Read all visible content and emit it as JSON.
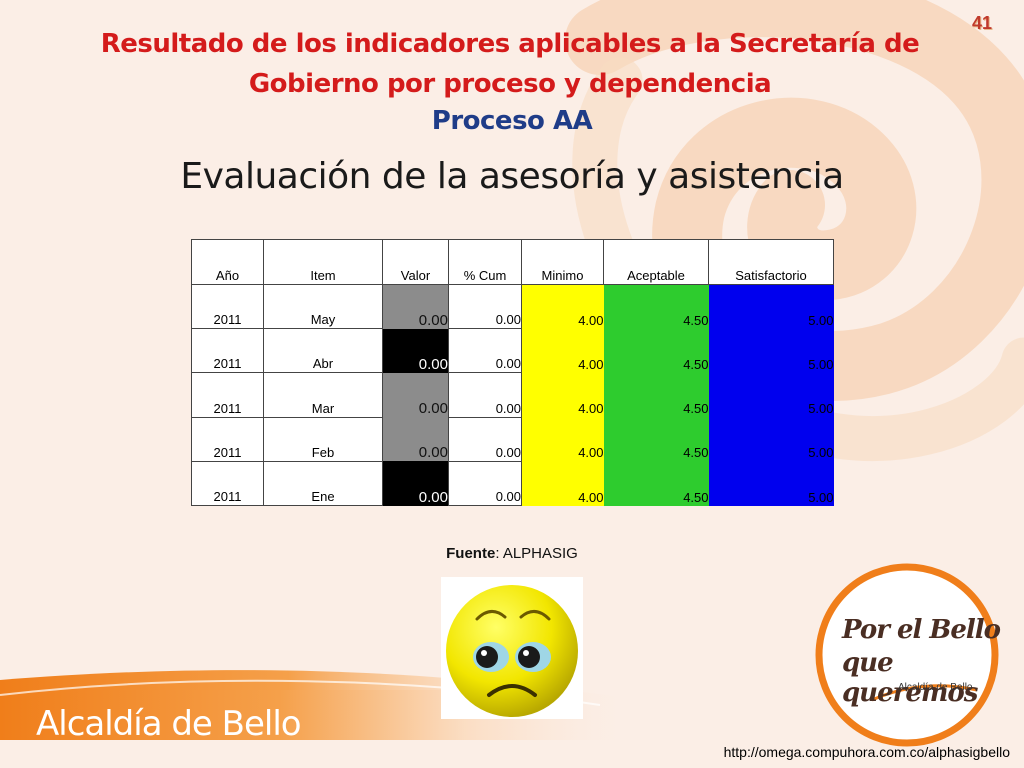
{
  "page_number": "41",
  "title": "Resultado de los indicadores aplicables a la Secretaría de Gobierno por proceso y dependencia",
  "subtitle": "Proceso AA",
  "heading": "Evaluación de la asesoría y asistencia",
  "table": {
    "headers": [
      "Año",
      "Item",
      "Valor",
      "% Cum",
      "Minimo",
      "Aceptable",
      "Satisfactorio"
    ],
    "rows": [
      {
        "anio": "2011",
        "item": "May",
        "valor": "0.00",
        "valor_color": "gray",
        "cum": "0.00",
        "minimo": "4.00",
        "aceptable": "4.50",
        "satisfactorio": "5.00"
      },
      {
        "anio": "2011",
        "item": "Abr",
        "valor": "0.00",
        "valor_color": "black",
        "cum": "0.00",
        "minimo": "4.00",
        "aceptable": "4.50",
        "satisfactorio": "5.00"
      },
      {
        "anio": "2011",
        "item": "Mar",
        "valor": "0.00",
        "valor_color": "gray",
        "cum": "0.00",
        "minimo": "4.00",
        "aceptable": "4.50",
        "satisfactorio": "5.00"
      },
      {
        "anio": "2011",
        "item": "Feb",
        "valor": "0.00",
        "valor_color": "gray",
        "cum": "0.00",
        "minimo": "4.00",
        "aceptable": "4.50",
        "satisfactorio": "5.00"
      },
      {
        "anio": "2011",
        "item": "Ene",
        "valor": "0.00",
        "valor_color": "black",
        "cum": "0.00",
        "minimo": "4.00",
        "aceptable": "4.50",
        "satisfactorio": "5.00"
      }
    ]
  },
  "source": {
    "label": "Fuente",
    "value": ": ALPHASIG"
  },
  "smiley_icon": "sad-face-icon",
  "footer_brand": "Alcaldía de Bello",
  "logo": {
    "line1": "Por el Bello",
    "line2": "que queremos",
    "caption": "Alcaldía de Bello"
  },
  "url": "http://omega.compuhora.com.co/alphasigbello",
  "colors": {
    "title": "#d41b1b",
    "subtitle": "#1f3c88",
    "minimo": "#ffff00",
    "aceptable": "#2ecc2e",
    "satisfactorio": "#0000ee",
    "footer_orange": "#f07e1a"
  }
}
